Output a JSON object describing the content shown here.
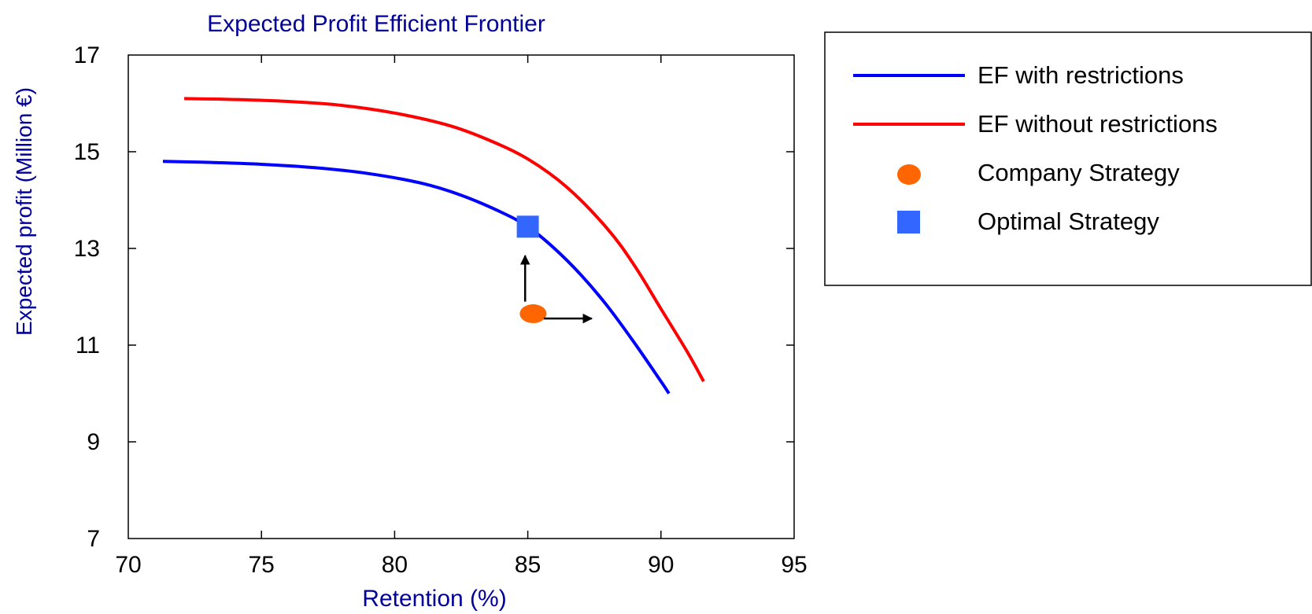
{
  "chart_data": {
    "type": "line",
    "title": "Expected Profit Efficient Frontier",
    "xlabel": "Retention (%)",
    "ylabel": "Expected profit (Million €)",
    "xlim": [
      70,
      95
    ],
    "ylim": [
      7,
      17
    ],
    "xticks": [
      70,
      75,
      80,
      85,
      90,
      95
    ],
    "yticks": [
      7,
      9,
      11,
      13,
      15,
      17
    ],
    "grid": false,
    "legend_position": "right",
    "series": [
      {
        "name": "EF with restrictions",
        "kind": "line",
        "color": "#0000ff",
        "x": [
          71.3,
          73,
          75,
          77,
          79,
          81,
          82.5,
          84,
          85,
          86,
          87,
          88,
          89,
          90,
          90.3
        ],
        "y": [
          14.8,
          14.78,
          14.74,
          14.67,
          14.55,
          14.35,
          14.1,
          13.75,
          13.45,
          13.0,
          12.45,
          11.8,
          11.05,
          10.25,
          10.0
        ]
      },
      {
        "name": "EF without restrictions",
        "kind": "line",
        "color": "#ff0000",
        "x": [
          72.1,
          74,
          76,
          78,
          80,
          82,
          83.5,
          85,
          86.5,
          88,
          89,
          90,
          91,
          91.6
        ],
        "y": [
          16.1,
          16.08,
          16.04,
          15.96,
          15.8,
          15.55,
          15.25,
          14.85,
          14.25,
          13.4,
          12.65,
          11.75,
          10.85,
          10.25
        ]
      },
      {
        "name": "Company Strategy",
        "kind": "ellipse",
        "color": "#ff6600",
        "x": [
          85.2
        ],
        "y": [
          11.65
        ]
      },
      {
        "name": "Optimal Strategy",
        "kind": "square",
        "color": "#3366ff",
        "x": [
          85.0
        ],
        "y": [
          13.45
        ]
      }
    ],
    "annotations": [
      {
        "kind": "arrow",
        "direction": "up",
        "from": [
          84.9,
          11.9
        ],
        "to": [
          84.9,
          12.85
        ]
      },
      {
        "kind": "arrow",
        "direction": "right",
        "from": [
          85.6,
          11.55
        ],
        "to": [
          87.4,
          11.55
        ]
      }
    ]
  }
}
